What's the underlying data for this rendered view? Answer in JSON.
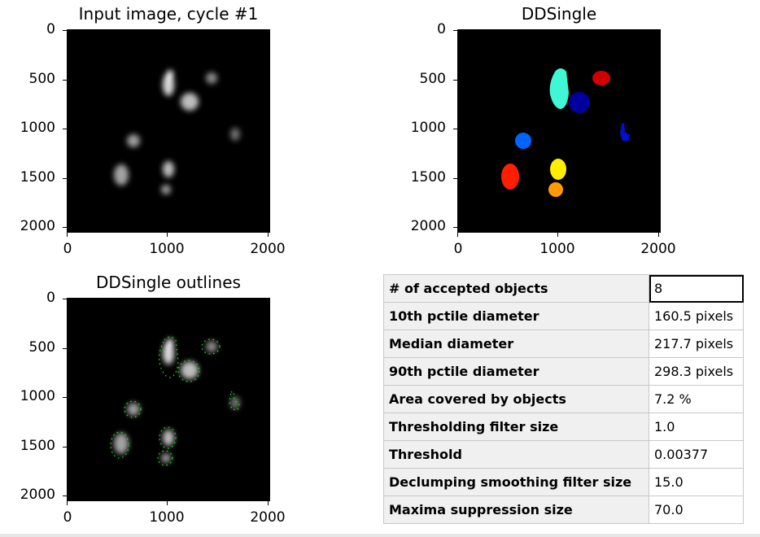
{
  "panels": {
    "input": {
      "title": "Input image, cycle #1",
      "yticks": [
        "0",
        "500",
        "1000",
        "1500",
        "2000"
      ],
      "xticks": [
        "0",
        "1000",
        "2000"
      ]
    },
    "ddsingle": {
      "title": "DDSingle",
      "yticks": [
        "0",
        "500",
        "1000",
        "1500",
        "2000"
      ],
      "xticks": [
        "0",
        "1000",
        "2000"
      ]
    },
    "outlines": {
      "title": "DDSingle outlines",
      "yticks": [
        "0",
        "500",
        "1000",
        "1500",
        "2000"
      ],
      "xticks": [
        "0",
        "1000",
        "2000"
      ]
    }
  },
  "colors": {
    "outline": "#00ff00",
    "cyan_object": "#3ff7d4",
    "red_object": "#ff1f00",
    "dark_red_object": "#d00000",
    "navy_object": "#00009c",
    "dark_blue_object": "#000fc9",
    "blue_object": "#0064ff",
    "yellow_object": "#ffee00",
    "orange_object": "#ff9a00"
  },
  "measurements": [
    {
      "label": "# of accepted objects",
      "value": "8"
    },
    {
      "label": "10th pctile diameter",
      "value": "160.5 pixels"
    },
    {
      "label": "Median diameter",
      "value": "217.7 pixels"
    },
    {
      "label": "90th pctile diameter",
      "value": "298.3 pixels"
    },
    {
      "label": "Area covered by objects",
      "value": "7.2 %"
    },
    {
      "label": "Thresholding filter size",
      "value": "1.0"
    },
    {
      "label": "Threshold",
      "value": "0.00377"
    },
    {
      "label": "Declumping smoothing filter size",
      "value": "15.0"
    },
    {
      "label": "Maxima suppression size",
      "value": "70.0"
    }
  ]
}
